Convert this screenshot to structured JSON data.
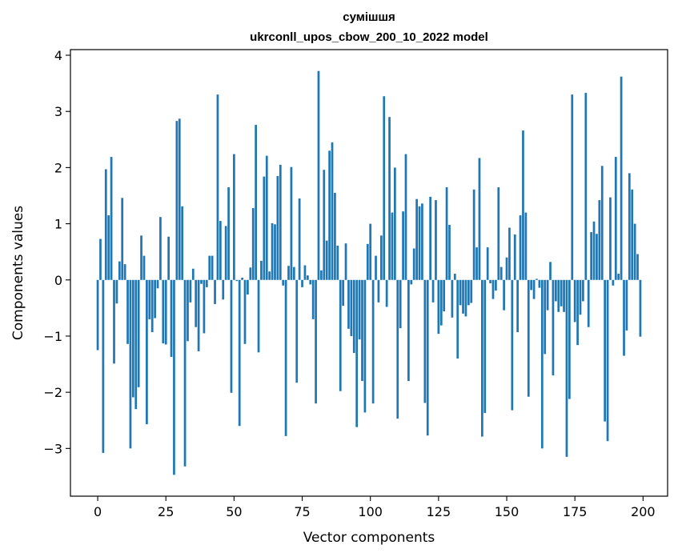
{
  "chart_data": {
    "type": "bar",
    "title_line1": "сумішшя",
    "title_line2": "ukrconll_upos_cbow_200_10_2022 model",
    "xlabel": "Vector components",
    "ylabel": "Components values",
    "xlim": [
      -10,
      209
    ],
    "ylim": [
      -3.85,
      4.1
    ],
    "xticks": [
      0,
      25,
      50,
      75,
      100,
      125,
      150,
      175,
      200
    ],
    "yticks": [
      -3,
      -2,
      -1,
      0,
      1,
      2,
      3,
      4
    ],
    "ytick_labels": [
      "−3",
      "−2",
      "−1",
      "0",
      "1",
      "2",
      "3",
      "4"
    ],
    "bar_color": "#1f77b4",
    "grid": false,
    "values": [
      -1.25,
      0.73,
      -3.08,
      1.97,
      1.15,
      2.19,
      -1.49,
      -0.42,
      0.33,
      1.46,
      0.28,
      -1.14,
      -3.0,
      -2.09,
      -2.3,
      -1.91,
      0.79,
      0.43,
      -2.57,
      -0.7,
      -0.93,
      -0.68,
      -0.15,
      1.12,
      -1.13,
      -1.15,
      0.77,
      -1.37,
      -3.47,
      2.83,
      2.87,
      1.31,
      -3.32,
      -1.09,
      -0.4,
      0.2,
      -0.84,
      -1.27,
      -0.07,
      -0.95,
      -0.13,
      0.43,
      0.43,
      -0.43,
      3.3,
      1.05,
      -0.35,
      0.96,
      1.65,
      -2.01,
      2.24,
      -0.02,
      -2.6,
      0.04,
      -1.14,
      -0.26,
      0.22,
      1.28,
      2.76,
      -1.29,
      0.34,
      1.84,
      2.21,
      0.15,
      1.01,
      0.99,
      1.85,
      2.05,
      -0.1,
      -2.78,
      0.25,
      2.01,
      0.23,
      -1.83,
      1.45,
      -0.13,
      0.26,
      0.08,
      -0.08,
      -0.7,
      -2.2,
      3.72,
      0.17,
      1.96,
      0.7,
      2.3,
      2.45,
      1.55,
      0.61,
      -1.98,
      -0.46,
      0.65,
      -0.87,
      -1.0,
      -1.3,
      -2.62,
      -1.06,
      -1.8,
      -2.36,
      0.64,
      1.0,
      -2.2,
      0.43,
      -0.4,
      0.79,
      3.27,
      -0.48,
      2.9,
      1.2,
      2.0,
      -2.47,
      -0.86,
      1.22,
      2.24,
      -1.8,
      -0.08,
      0.56,
      1.44,
      1.31,
      1.36,
      -2.19,
      -2.77,
      1.48,
      -0.4,
      1.42,
      -0.96,
      -0.81,
      -0.56,
      1.65,
      0.98,
      -0.67,
      0.11,
      -1.4,
      -0.45,
      -0.6,
      -0.65,
      -0.45,
      -0.41,
      1.61,
      0.58,
      2.17,
      -2.79,
      -2.37,
      0.58,
      -0.06,
      -0.34,
      -0.19,
      1.65,
      0.23,
      -0.54,
      0.4,
      0.93,
      -2.32,
      0.81,
      -0.93,
      1.15,
      2.66,
      1.2,
      -2.08,
      -0.18,
      -0.34,
      0.02,
      -0.14,
      -3.0,
      -1.32,
      -0.54,
      0.32,
      -1.7,
      -0.38,
      -0.57,
      -0.47,
      -0.57,
      -3.15,
      -2.12,
      3.3,
      -0.75,
      -1.16,
      -0.62,
      -0.38,
      3.33,
      -0.84,
      0.85,
      1.04,
      0.82,
      1.42,
      2.03,
      -2.52,
      -2.87,
      1.47,
      -0.1,
      2.19,
      0.11,
      3.62,
      -1.35,
      -0.9,
      1.9,
      1.61,
      1.0,
      0.46,
      -1.01
    ]
  }
}
